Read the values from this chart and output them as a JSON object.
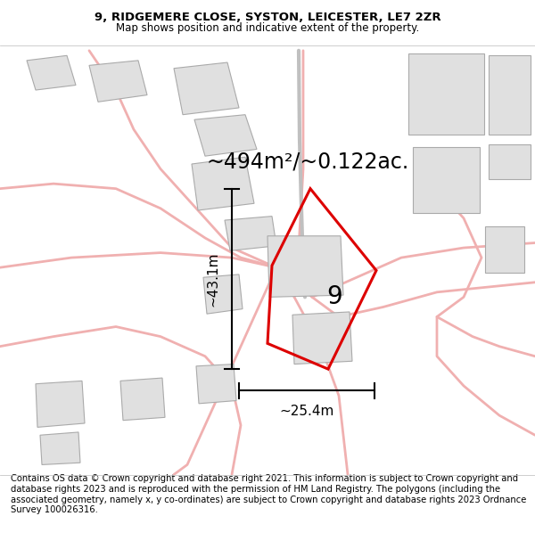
{
  "title_line1": "9, RIDGEMERE CLOSE, SYSTON, LEICESTER, LE7 2ZR",
  "title_line2": "Map shows position and indicative extent of the property.",
  "area_label": "~494m²/~0.122ac.",
  "number_label": "9",
  "dim_height": "~43.1m",
  "dim_width": "~25.4m",
  "footer_text": "Contains OS data © Crown copyright and database right 2021. This information is subject to Crown copyright and database rights 2023 and is reproduced with the permission of HM Land Registry. The polygons (including the associated geometry, namely x, y co-ordinates) are subject to Crown copyright and database rights 2023 Ordnance Survey 100026316.",
  "bg_color": "#ffffff",
  "map_bg": "#ffffff",
  "road_color": "#f0b0b0",
  "building_fill": "#e0e0e0",
  "building_edge": "#aaaaaa",
  "property_color": "#dd0000",
  "title_fontsize": 9.5,
  "subtitle_fontsize": 8.5,
  "area_fontsize": 17,
  "number_fontsize": 20,
  "dim_fontsize": 11,
  "footer_fontsize": 7.2
}
